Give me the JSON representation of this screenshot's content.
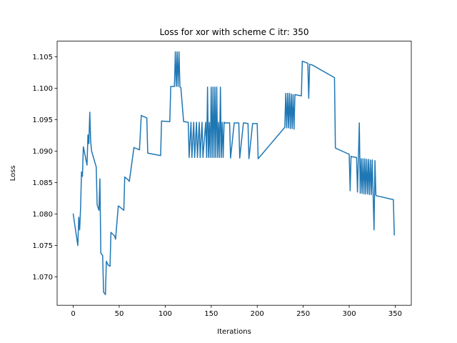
{
  "chart_data": {
    "type": "line",
    "title": "Loss for xor with scheme C itr: 350",
    "xlabel": "Iterations",
    "ylabel": "Loss",
    "xlim": [
      -17.5,
      367.5
    ],
    "ylim": [
      1.0655,
      1.1075
    ],
    "xticks": [
      0,
      50,
      100,
      150,
      200,
      250,
      300,
      350
    ],
    "yticks": [
      1.07,
      1.075,
      1.08,
      1.085,
      1.09,
      1.095,
      1.1,
      1.105
    ],
    "grid": false,
    "line_color": "#1f77b4",
    "series": [
      {
        "name": "",
        "x": [
          0,
          5,
          6,
          7,
          8,
          9,
          10,
          11,
          12,
          15,
          16,
          17,
          18,
          19,
          20,
          21,
          22,
          25,
          26,
          27,
          28,
          29,
          30,
          32,
          33,
          35,
          36,
          37,
          38,
          40,
          41,
          45,
          46,
          49,
          50,
          55,
          56,
          60,
          61,
          66,
          67,
          71,
          72,
          74,
          75,
          80,
          81,
          95,
          96,
          105,
          106,
          110,
          111,
          112,
          113,
          114,
          115,
          116,
          117,
          120,
          121,
          125,
          126,
          128,
          129,
          131,
          132,
          134,
          135,
          137,
          138,
          140,
          141,
          144,
          145,
          146,
          147,
          148,
          149,
          150,
          151,
          152,
          153,
          154,
          155,
          156,
          157,
          158,
          159,
          160,
          161,
          162,
          163,
          164,
          165,
          170,
          171,
          175,
          176,
          180,
          181,
          185,
          186,
          190,
          191,
          195,
          196,
          200,
          201,
          230,
          231,
          232,
          233,
          234,
          235,
          236,
          237,
          238,
          239,
          240,
          241,
          248,
          249,
          255,
          256,
          257,
          258,
          260,
          284,
          285,
          300,
          301,
          302,
          303,
          304,
          308,
          309,
          310,
          311,
          312,
          313,
          314,
          315,
          316,
          317,
          318,
          319,
          320,
          321,
          322,
          323,
          324,
          325,
          326,
          327,
          328,
          329,
          330,
          348,
          349
        ],
        "y": [
          1.08,
          1.075,
          1.0795,
          1.0775,
          1.081,
          1.0867,
          1.086,
          1.0907,
          1.09,
          1.0878,
          1.0926,
          1.0912,
          1.0962,
          1.0915,
          1.09,
          1.0895,
          1.089,
          1.0875,
          1.0815,
          1.081,
          1.0806,
          1.0856,
          1.0738,
          1.0734,
          1.0676,
          1.0672,
          1.0725,
          1.0722,
          1.0719,
          1.0717,
          1.0771,
          1.0765,
          1.076,
          1.0813,
          1.0812,
          1.0806,
          1.0859,
          1.0854,
          1.0852,
          1.0906,
          1.0905,
          1.0903,
          1.0902,
          1.0957,
          1.0956,
          1.0953,
          1.0897,
          1.0893,
          1.0948,
          1.0947,
          1.1003,
          1.1003,
          1.1058,
          1.1003,
          1.1058,
          1.1003,
          1.1058,
          1.1002,
          1.1001,
          1.0947,
          1.0947,
          1.0946,
          1.089,
          1.0946,
          1.089,
          1.0946,
          1.089,
          1.0946,
          1.089,
          1.0946,
          1.089,
          1.0946,
          1.089,
          1.0946,
          1.089,
          1.1002,
          1.089,
          1.0946,
          1.089,
          1.1002,
          1.089,
          1.1002,
          1.089,
          1.1002,
          1.089,
          1.1002,
          1.089,
          1.0946,
          1.089,
          1.1002,
          1.089,
          1.0946,
          1.089,
          1.0946,
          1.0945,
          1.0945,
          1.0889,
          1.0945,
          1.0945,
          1.0945,
          1.0889,
          1.0945,
          1.0945,
          1.0944,
          1.0888,
          1.0944,
          1.0944,
          1.0944,
          1.0888,
          1.0938,
          1.0992,
          1.0937,
          1.0992,
          1.0937,
          1.0992,
          1.0936,
          1.0991,
          1.0936,
          1.099,
          1.0935,
          1.099,
          1.0988,
          1.1043,
          1.104,
          1.0984,
          1.1038,
          1.1038,
          1.1037,
          1.1017,
          1.0905,
          1.0895,
          1.0837,
          1.0892,
          1.0891,
          1.0891,
          1.089,
          1.0835,
          1.089,
          1.0945,
          1.0833,
          1.0888,
          1.0833,
          1.0888,
          1.0832,
          1.0888,
          1.0832,
          1.0887,
          1.0832,
          1.0887,
          1.0831,
          1.0886,
          1.0831,
          1.0886,
          1.083,
          1.0775,
          1.0885,
          1.083,
          1.0829,
          1.0823,
          1.0767
        ]
      }
    ]
  }
}
